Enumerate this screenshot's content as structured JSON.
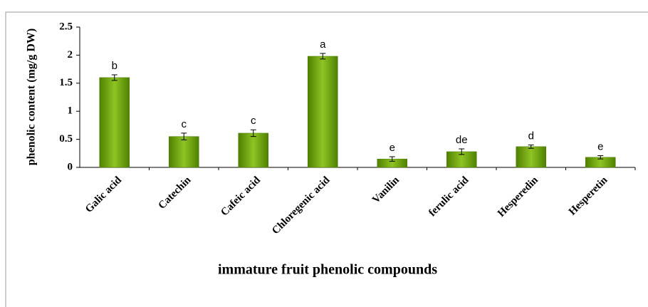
{
  "chart_data": {
    "type": "bar",
    "categories": [
      "Galic acid",
      "Catechin",
      "Cafeic acid",
      "Chloregenic acid",
      "Vanilin",
      "ferulic acid",
      "Hesperedin",
      "Hesperetin"
    ],
    "values": [
      1.6,
      0.55,
      0.61,
      1.98,
      0.15,
      0.28,
      0.37,
      0.18
    ],
    "errors": [
      0.05,
      0.06,
      0.06,
      0.05,
      0.04,
      0.05,
      0.03,
      0.03
    ],
    "letters": [
      "b",
      "c",
      "c",
      "a",
      "e",
      "de",
      "d",
      "e"
    ],
    "color": "#6aa010",
    "ylabel": "phenolic content (mg/g DW)",
    "xlabel": "immature fruit phenolic compounds",
    "ylim": [
      0,
      2.5
    ],
    "yticks": [
      0,
      0.5,
      1,
      1.5,
      2,
      2.5
    ]
  }
}
